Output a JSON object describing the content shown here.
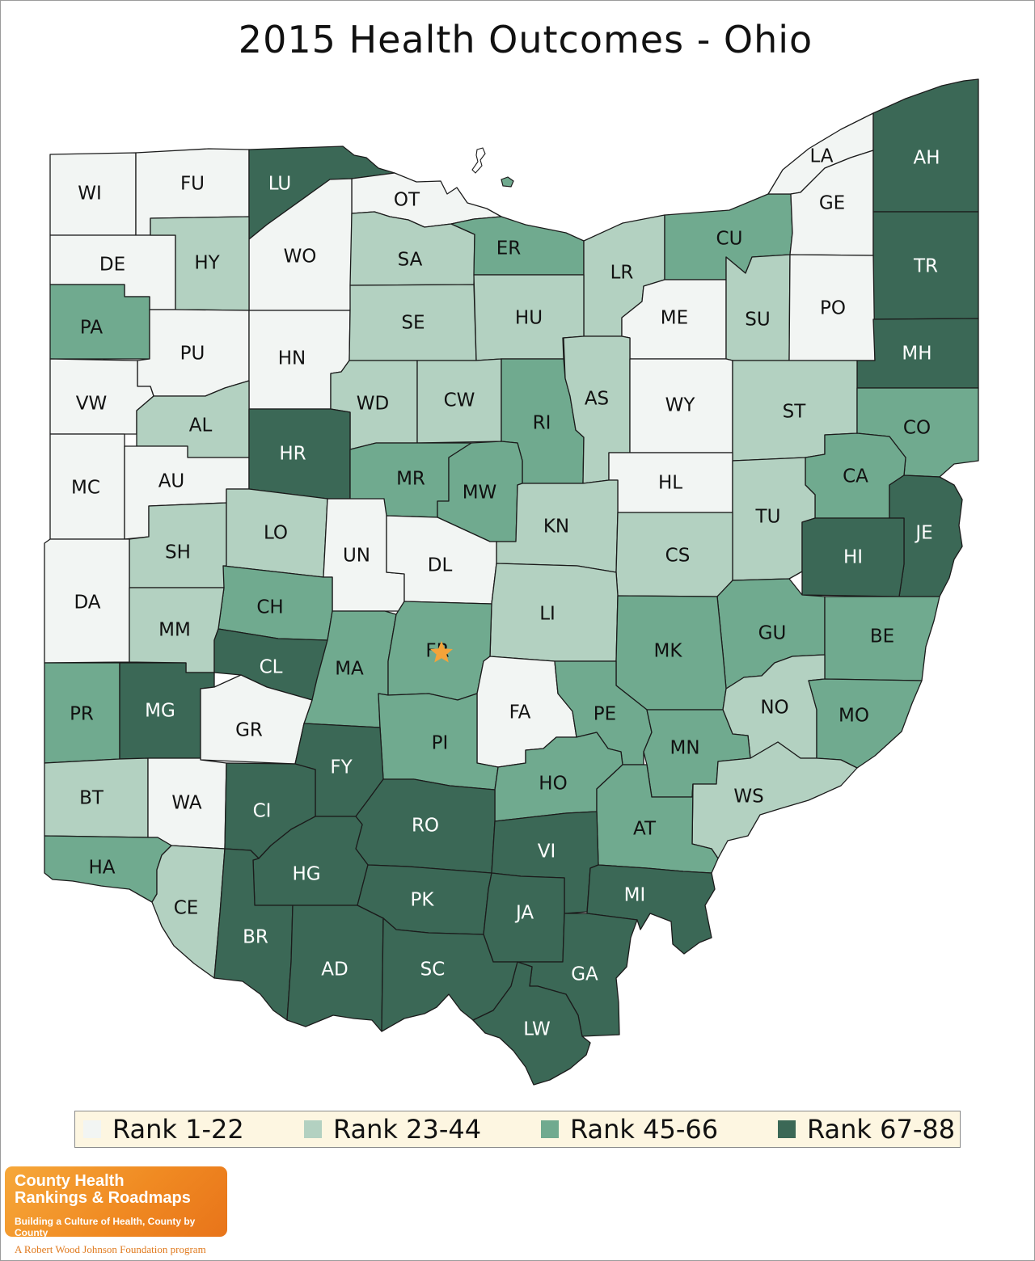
{
  "title": "2015 Health Outcomes - Ohio",
  "colors": {
    "rank_1_22": "#f2f5f3",
    "rank_23_44": "#b3d1c1",
    "rank_45_66": "#70aa8f",
    "rank_67_88": "#3b6856",
    "label_light": "#111111",
    "label_dark": "#ffffff",
    "star": "#f3a33a"
  },
  "legend": [
    {
      "label": "Rank 1-22",
      "color": "#f2f5f3"
    },
    {
      "label": "Rank 23-44",
      "color": "#b3d1c1"
    },
    {
      "label": "Rank 45-66",
      "color": "#70aa8f"
    },
    {
      "label": "Rank 67-88",
      "color": "#3b6856"
    }
  ],
  "marker": {
    "icon": "star-icon",
    "county": "FR"
  },
  "counties": [
    {
      "id": "WI",
      "rank": "1-22"
    },
    {
      "id": "FU",
      "rank": "1-22"
    },
    {
      "id": "LU",
      "rank": "67-88"
    },
    {
      "id": "OT",
      "rank": "1-22"
    },
    {
      "id": "WO",
      "rank": "1-22"
    },
    {
      "id": "DE",
      "rank": "1-22"
    },
    {
      "id": "HY",
      "rank": "23-44"
    },
    {
      "id": "SA",
      "rank": "23-44"
    },
    {
      "id": "ER",
      "rank": "45-66"
    },
    {
      "id": "LR",
      "rank": "23-44"
    },
    {
      "id": "CU",
      "rank": "45-66"
    },
    {
      "id": "LA",
      "rank": "1-22"
    },
    {
      "id": "GE",
      "rank": "1-22"
    },
    {
      "id": "AH",
      "rank": "67-88"
    },
    {
      "id": "TR",
      "rank": "67-88"
    },
    {
      "id": "PA",
      "rank": "45-66"
    },
    {
      "id": "PU",
      "rank": "1-22"
    },
    {
      "id": "HN",
      "rank": "1-22"
    },
    {
      "id": "SE",
      "rank": "23-44"
    },
    {
      "id": "HU",
      "rank": "23-44"
    },
    {
      "id": "ME",
      "rank": "1-22"
    },
    {
      "id": "SU",
      "rank": "23-44"
    },
    {
      "id": "PO",
      "rank": "1-22"
    },
    {
      "id": "MH",
      "rank": "67-88"
    },
    {
      "id": "VW",
      "rank": "1-22"
    },
    {
      "id": "AL",
      "rank": "23-44"
    },
    {
      "id": "WD",
      "rank": "23-44"
    },
    {
      "id": "CW",
      "rank": "23-44"
    },
    {
      "id": "RI",
      "rank": "45-66"
    },
    {
      "id": "AS",
      "rank": "23-44"
    },
    {
      "id": "WY",
      "rank": "1-22"
    },
    {
      "id": "ST",
      "rank": "23-44"
    },
    {
      "id": "CO",
      "rank": "45-66"
    },
    {
      "id": "MC",
      "rank": "1-22"
    },
    {
      "id": "AU",
      "rank": "1-22"
    },
    {
      "id": "HR",
      "rank": "67-88"
    },
    {
      "id": "MR",
      "rank": "45-66"
    },
    {
      "id": "MW",
      "rank": "45-66"
    },
    {
      "id": "HL",
      "rank": "1-22"
    },
    {
      "id": "CA",
      "rank": "45-66"
    },
    {
      "id": "KN",
      "rank": "23-44"
    },
    {
      "id": "SH",
      "rank": "23-44"
    },
    {
      "id": "LO",
      "rank": "23-44"
    },
    {
      "id": "UN",
      "rank": "1-22"
    },
    {
      "id": "DL",
      "rank": "1-22"
    },
    {
      "id": "TU",
      "rank": "23-44"
    },
    {
      "id": "JE",
      "rank": "67-88"
    },
    {
      "id": "CS",
      "rank": "23-44"
    },
    {
      "id": "HI",
      "rank": "67-88"
    },
    {
      "id": "DA",
      "rank": "1-22"
    },
    {
      "id": "CH",
      "rank": "45-66"
    },
    {
      "id": "LI",
      "rank": "23-44"
    },
    {
      "id": "MM",
      "rank": "23-44"
    },
    {
      "id": "GU",
      "rank": "45-66"
    },
    {
      "id": "BE",
      "rank": "45-66"
    },
    {
      "id": "MK",
      "rank": "45-66"
    },
    {
      "id": "CL",
      "rank": "67-88"
    },
    {
      "id": "MA",
      "rank": "45-66"
    },
    {
      "id": "FR",
      "rank": "45-66"
    },
    {
      "id": "PR",
      "rank": "45-66"
    },
    {
      "id": "MG",
      "rank": "67-88"
    },
    {
      "id": "FA",
      "rank": "1-22"
    },
    {
      "id": "PE",
      "rank": "45-66"
    },
    {
      "id": "NO",
      "rank": "23-44"
    },
    {
      "id": "MO",
      "rank": "45-66"
    },
    {
      "id": "GR",
      "rank": "1-22"
    },
    {
      "id": "MN",
      "rank": "45-66"
    },
    {
      "id": "PI",
      "rank": "45-66"
    },
    {
      "id": "FY",
      "rank": "67-88"
    },
    {
      "id": "HO",
      "rank": "45-66"
    },
    {
      "id": "BT",
      "rank": "23-44"
    },
    {
      "id": "WA",
      "rank": "1-22"
    },
    {
      "id": "WS",
      "rank": "23-44"
    },
    {
      "id": "CI",
      "rank": "67-88"
    },
    {
      "id": "RO",
      "rank": "67-88"
    },
    {
      "id": "AT",
      "rank": "45-66"
    },
    {
      "id": "VI",
      "rank": "67-88"
    },
    {
      "id": "HA",
      "rank": "45-66"
    },
    {
      "id": "HG",
      "rank": "67-88"
    },
    {
      "id": "MI",
      "rank": "67-88"
    },
    {
      "id": "PK",
      "rank": "67-88"
    },
    {
      "id": "CE",
      "rank": "23-44"
    },
    {
      "id": "JA",
      "rank": "67-88"
    },
    {
      "id": "BR",
      "rank": "67-88"
    },
    {
      "id": "AD",
      "rank": "67-88"
    },
    {
      "id": "SC",
      "rank": "67-88"
    },
    {
      "id": "GA",
      "rank": "67-88"
    },
    {
      "id": "LW",
      "rank": "67-88"
    }
  ],
  "logo": {
    "line1": "County Health",
    "line2": "Rankings & Roadmaps",
    "line3": "Building a Culture of Health, County by County",
    "footer": "A Robert Wood Johnson Foundation program"
  }
}
